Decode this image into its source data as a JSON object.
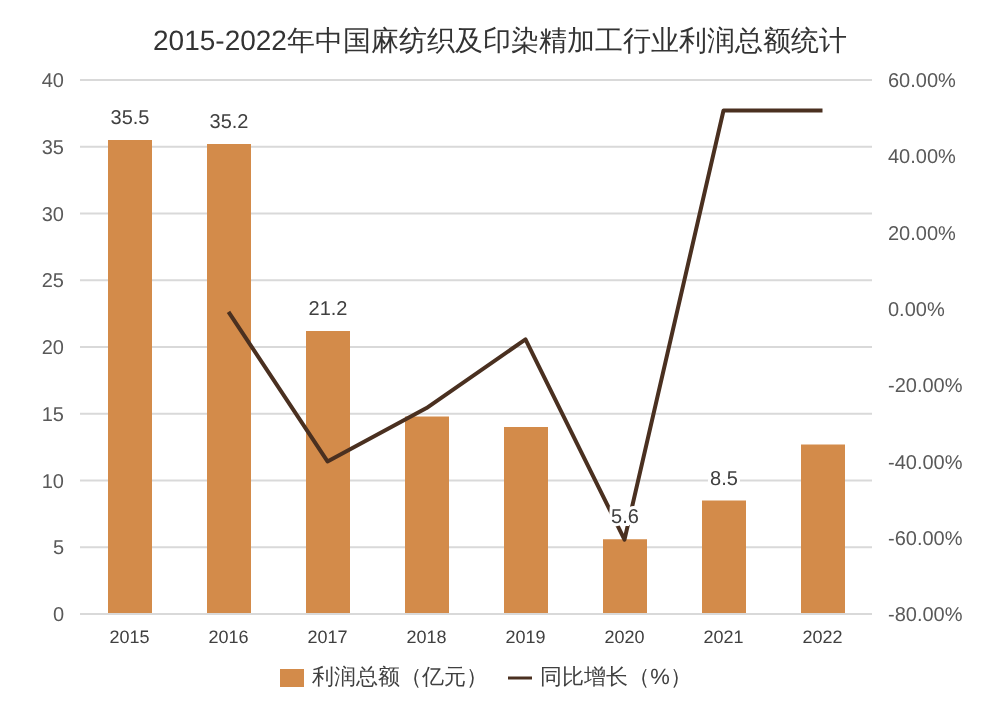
{
  "chart_data": {
    "type": "bar",
    "title": "2015-2022年中国麻纺织及印染精加工行业利润总额统计",
    "categories": [
      "2015",
      "2016",
      "2017",
      "2018",
      "2019",
      "2020",
      "2021",
      "2022"
    ],
    "series": [
      {
        "name": "利润总额（亿元）",
        "color": "#d38b4a",
        "values": [
          35.5,
          35.2,
          21.2,
          14.8,
          14.0,
          5.6,
          8.5,
          12.7
        ],
        "value_labels": [
          "35.5",
          "35.2",
          "21.2",
          null,
          null,
          "5.6",
          "8.5",
          null
        ]
      },
      {
        "name": "同比增长（%）",
        "type": "line",
        "axis": "y2",
        "color": "#4a3020",
        "values": [
          null,
          -0.8,
          -40,
          -26,
          -8,
          -60.5,
          52,
          52
        ]
      }
    ],
    "ylim": [
      0,
      40
    ],
    "yticks": [
      0,
      5,
      10,
      15,
      20,
      25,
      30,
      35,
      40
    ],
    "y2lim": [
      -80,
      60
    ],
    "y2ticks": [
      {
        "value": -80,
        "label": "-80.00%"
      },
      {
        "value": -60,
        "label": "-60.00%"
      },
      {
        "value": -40,
        "label": "-40.00%"
      },
      {
        "value": -20,
        "label": "-20.00%"
      },
      {
        "value": 0,
        "label": "0.00%"
      },
      {
        "value": 20,
        "label": "20.00%"
      },
      {
        "value": 40,
        "label": "40.00%"
      },
      {
        "value": 60,
        "label": "60.00%"
      }
    ],
    "grid": "y",
    "legend": "bottom",
    "marker": "none",
    "line_style": "solid"
  }
}
